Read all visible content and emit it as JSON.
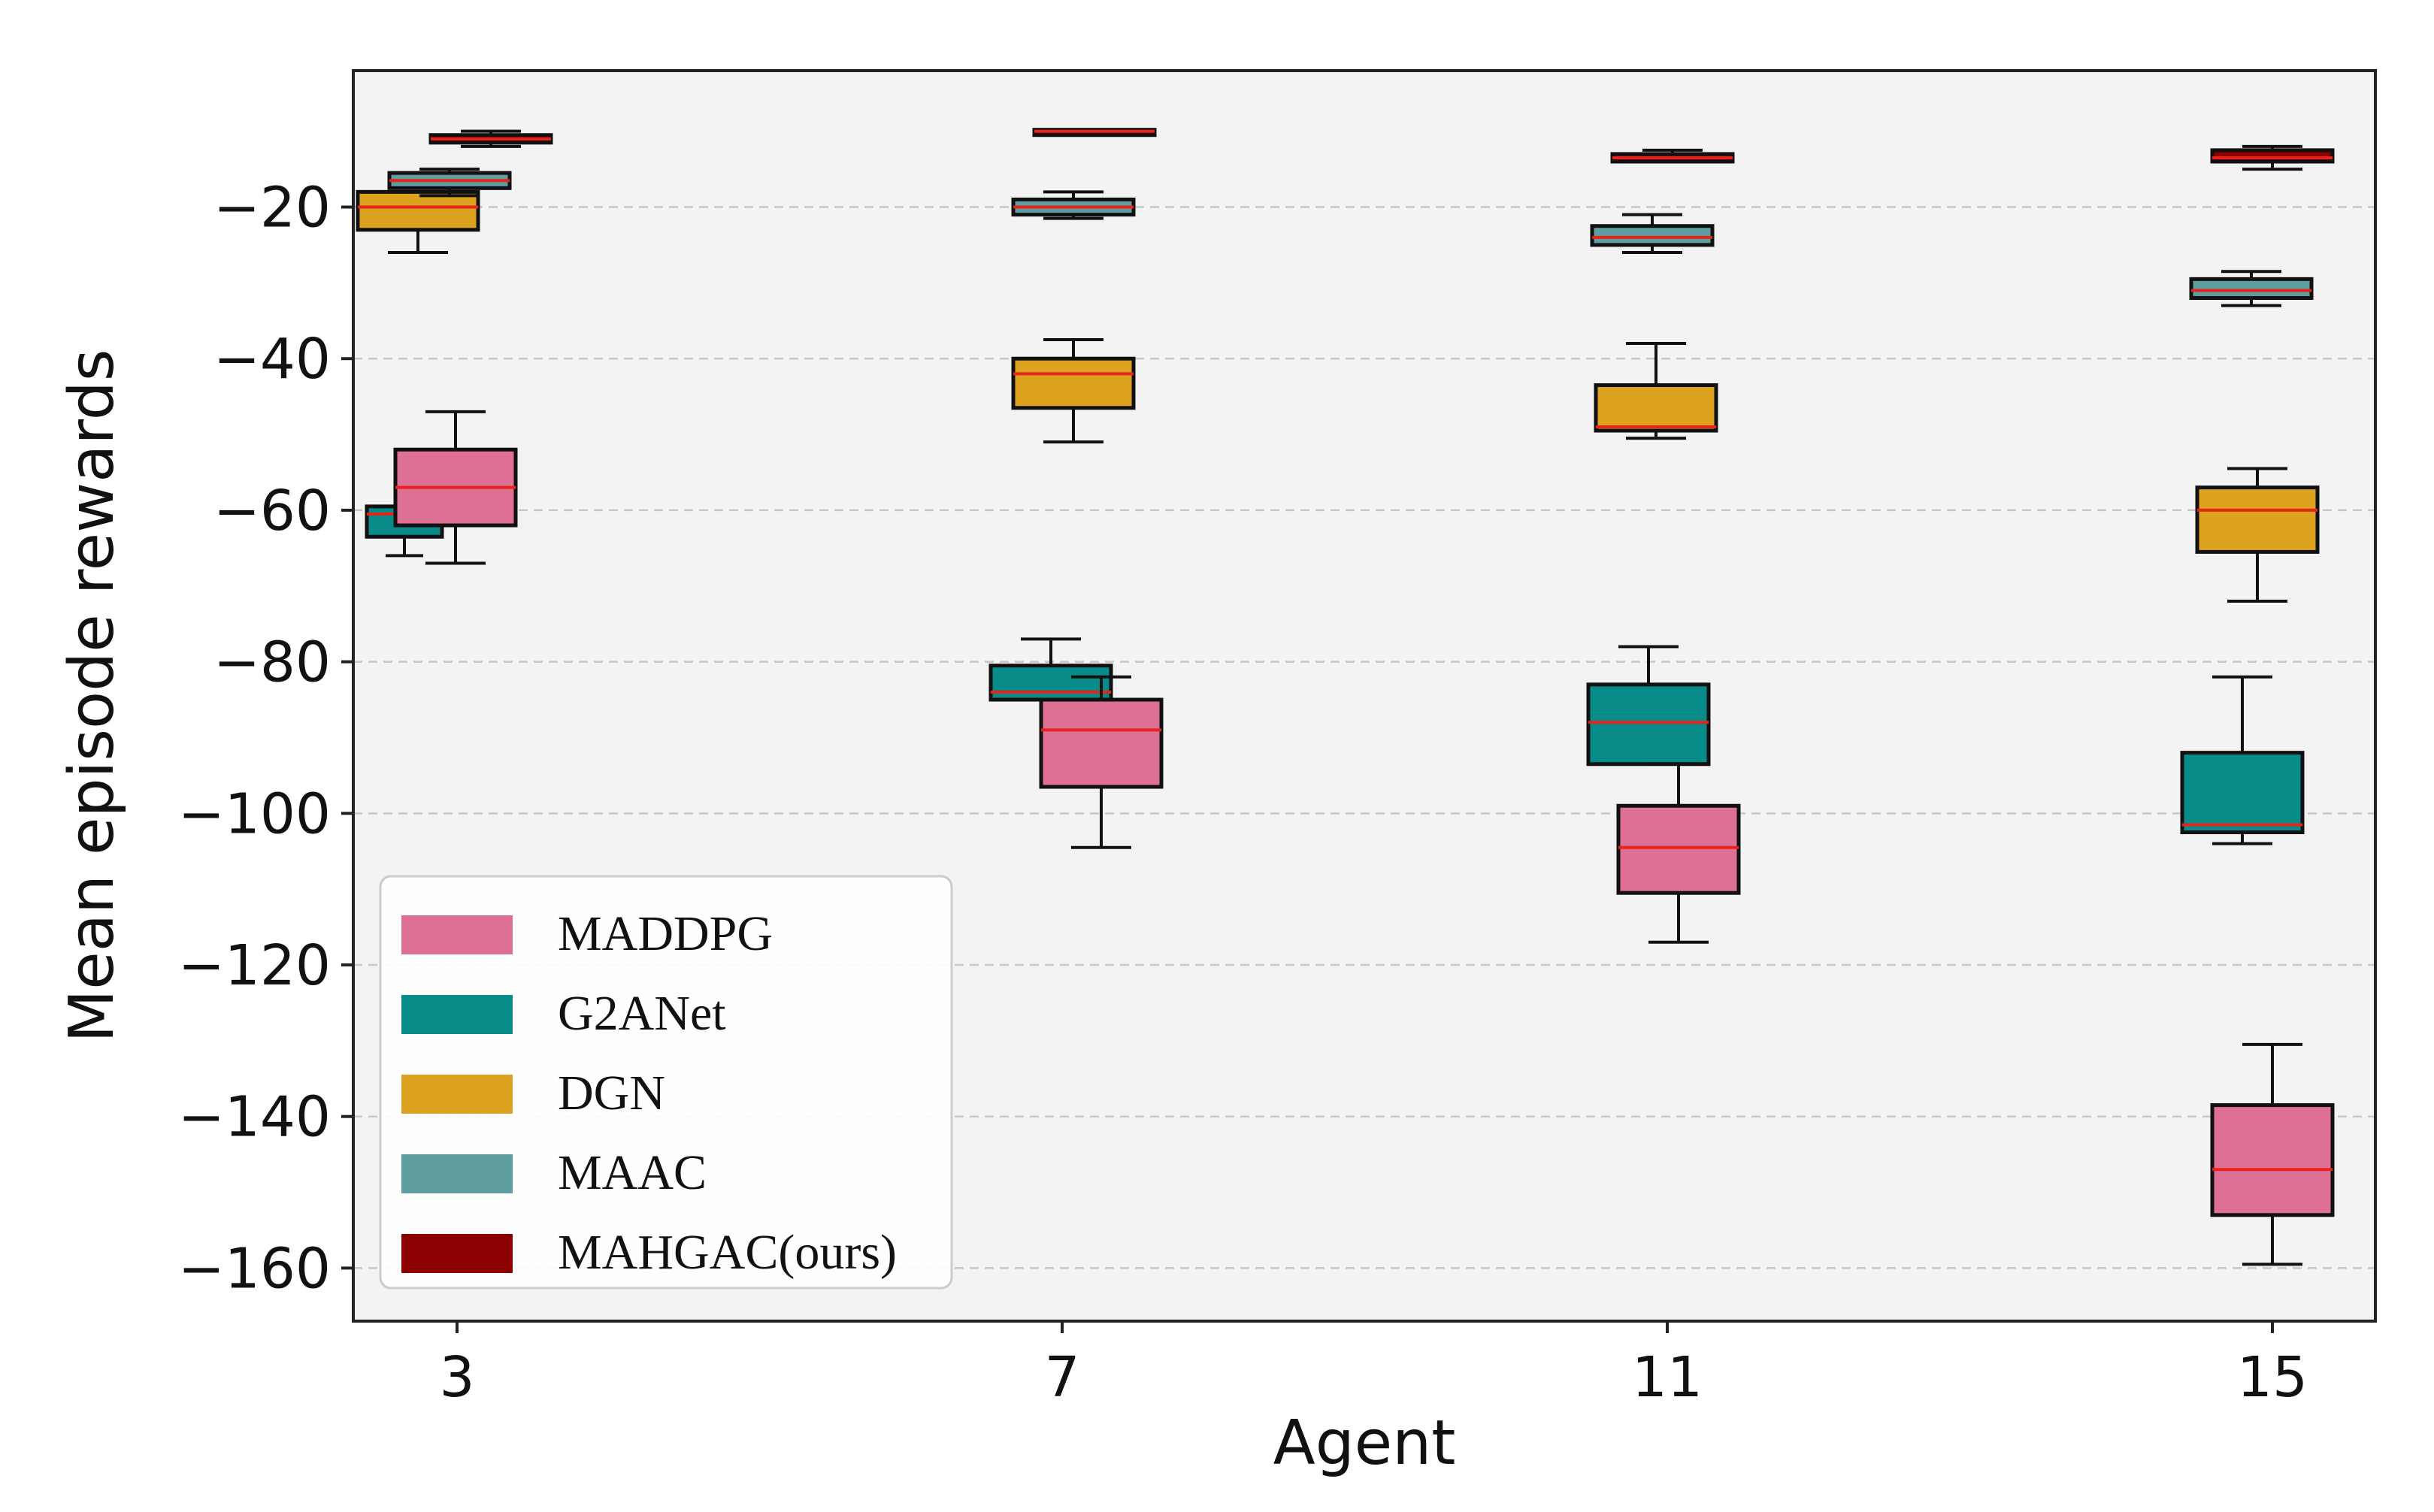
{
  "chart_data": {
    "type": "box",
    "title": "",
    "xlabel": "Agent",
    "ylabel": "Mean episode rewards",
    "categories": [
      "3",
      "7",
      "11",
      "15"
    ],
    "ylim": [
      -167,
      -2
    ],
    "yticks": [
      -20,
      -40,
      -60,
      -80,
      -100,
      -120,
      -140,
      -160
    ],
    "ytick_labels": [
      "−20",
      "−40",
      "−60",
      "−80",
      "−100",
      "−120",
      "−140",
      "−160"
    ],
    "grid": "horizontal dashed",
    "legend_position": "lower-left",
    "series": [
      {
        "name": "MADDPG",
        "color": "#DE7094",
        "boxes": [
          {
            "whislo": -67,
            "q1": -62,
            "med": -57,
            "q3": -52,
            "whishi": -47
          },
          {
            "whislo": -104.5,
            "q1": -96.5,
            "med": -89,
            "q3": -85,
            "whishi": -82
          },
          {
            "whislo": -117,
            "q1": -110.5,
            "med": -104.5,
            "q3": -99,
            "whishi": -93.5
          },
          {
            "whislo": -159.5,
            "q1": -153,
            "med": -147,
            "q3": -138.5,
            "whishi": -130.5
          }
        ]
      },
      {
        "name": "G2ANet",
        "color": "#078C8A",
        "boxes": [
          {
            "whislo": -66,
            "q1": -63.5,
            "med": -60.5,
            "q3": -59.5,
            "whishi": -59.5
          },
          {
            "whislo": -85,
            "q1": -85,
            "med": -84,
            "q3": -80.5,
            "whishi": -77
          },
          {
            "whislo": -93.5,
            "q1": -93.5,
            "med": -88,
            "q3": -83,
            "whishi": -78
          },
          {
            "whislo": -104,
            "q1": -102.5,
            "med": -101.5,
            "q3": -92,
            "whishi": -82
          }
        ]
      },
      {
        "name": "DGN",
        "color": "#DDA31F",
        "boxes": [
          {
            "whislo": -26,
            "q1": -23,
            "med": -20,
            "q3": -18,
            "whishi": -18
          },
          {
            "whislo": -51,
            "q1": -46.5,
            "med": -42,
            "q3": -40,
            "whishi": -37.5
          },
          {
            "whislo": -50.5,
            "q1": -49.5,
            "med": -49,
            "q3": -43.5,
            "whishi": -38
          }
        ],
        "box_positions": [
          0,
          1,
          2,
          3
        ],
        "extra": {
          "whislo": -72,
          "q1": -65.5,
          "med": -60,
          "q3": -57,
          "whishi": -54.5
        }
      },
      {
        "name": "MAAC",
        "color": "#5E9EA0",
        "boxes": [
          {
            "whislo": -18.5,
            "q1": -17.5,
            "med": -16.5,
            "q3": -15.5,
            "whishi": -15
          },
          {
            "whislo": -21.5,
            "q1": -21,
            "med": -20,
            "q3": -19,
            "whishi": -18
          },
          {
            "whislo": -26,
            "q1": -25,
            "med": -24,
            "q3": -22.5,
            "whishi": -21
          },
          {
            "whislo": -33,
            "q1": -32,
            "med": -31,
            "q3": -29.5,
            "whishi": -28.5
          }
        ]
      },
      {
        "name": "MAHGAC(ours)",
        "color": "#8B0000",
        "boxes": [
          {
            "whislo": -12,
            "q1": -11.5,
            "med": -11,
            "q3": -10.5,
            "whishi": -10
          },
          {
            "whislo": -10.5,
            "q1": -10.5,
            "med": -10,
            "q3": -9.8,
            "whishi": -9.8
          },
          {
            "whislo": -14,
            "q1": -14,
            "med": -13.5,
            "q3": -13,
            "whishi": -12.5
          },
          {
            "whislo": -15,
            "q1": -14,
            "med": -13.5,
            "q3": -12.5,
            "whishi": -12
          }
        ]
      }
    ]
  }
}
